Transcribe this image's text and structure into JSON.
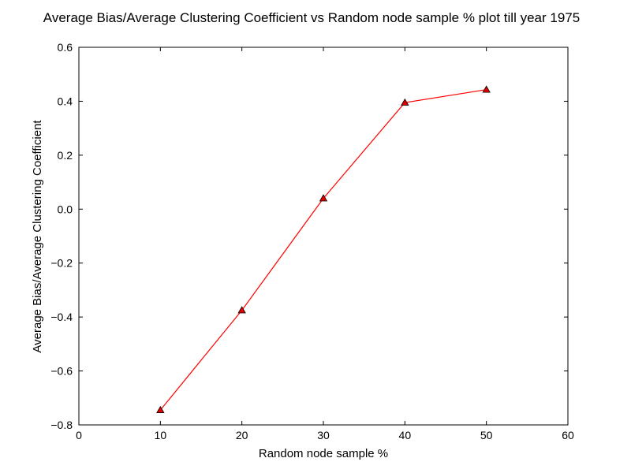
{
  "chart_data": {
    "type": "line",
    "title": "Average Bias/Average Clustering Coefficient vs Random node sample % plot till year 1975",
    "xlabel": "Random node sample %",
    "ylabel": "Average Bias/Average Clustering Coefficient",
    "xlim": [
      0,
      60
    ],
    "ylim": [
      -0.8,
      0.6
    ],
    "x_ticks": [
      "0",
      "10",
      "20",
      "30",
      "40",
      "50",
      "60"
    ],
    "y_ticks": [
      "−0.8",
      "−0.6",
      "−0.4",
      "−0.2",
      "0.0",
      "0.2",
      "0.4",
      "0.6"
    ],
    "grid": false,
    "series": [
      {
        "x": [
          10,
          20,
          30,
          40,
          50
        ],
        "y": [
          -0.745,
          -0.375,
          0.04,
          0.395,
          0.443
        ],
        "color": "#ff0000",
        "marker": "triangle-up",
        "marker_fill": "#e00000",
        "marker_edge": "#000000"
      }
    ]
  }
}
